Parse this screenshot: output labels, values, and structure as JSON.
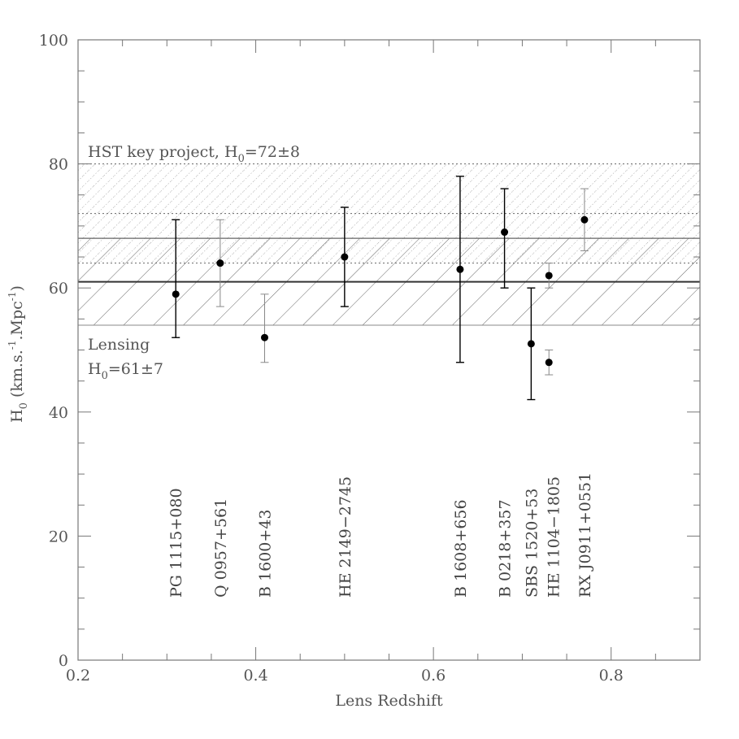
{
  "chart_data": {
    "type": "scatter",
    "xlabel": "Lens Redshift",
    "ylabel": {
      "base": "H",
      "sub": "0",
      "unit_open": " (km.s.",
      "unit_sup1": "-1",
      "unit_mid": ".Mpc",
      "unit_sup2": "-1",
      "unit_close": ")"
    },
    "xlim": [
      0.2,
      0.9
    ],
    "ylim": [
      0,
      100
    ],
    "x_ticks": [
      "0.2",
      "0.4",
      "0.6",
      "0.8"
    ],
    "y_ticks": [
      "0",
      "20",
      "40",
      "60",
      "80",
      "100"
    ],
    "grid": false,
    "series": [
      {
        "points": [
          {
            "name": "PG 1115+080",
            "x": 0.31,
            "y": 59,
            "y_low": 52,
            "y_high": 71,
            "label_x": 0.31
          },
          {
            "name": "Q 0957+561",
            "x": 0.36,
            "y": 64,
            "y_low": 57,
            "y_high": 71,
            "label_x": 0.36
          },
          {
            "name": "B 1600+43",
            "x": 0.41,
            "y": 52,
            "y_low": 48,
            "y_high": 59,
            "label_x": 0.41
          },
          {
            "name": "HE 2149−2745",
            "x": 0.5,
            "y": 65,
            "y_low": 57,
            "y_high": 73,
            "label_x": 0.5
          },
          {
            "name": "B 1608+656",
            "x": 0.63,
            "y": 63,
            "y_low": 48,
            "y_high": 78,
            "label_x": 0.63
          },
          {
            "name": "B 0218+357",
            "x": 0.68,
            "y": 69,
            "y_low": 60,
            "y_high": 76,
            "label_x": 0.68
          },
          {
            "name": "SBS 1520+53",
            "x": 0.71,
            "y": 51,
            "y_low": 42,
            "y_high": 60,
            "label_x": 0.71
          },
          {
            "name": "HE 1104−1805",
            "x": 0.73,
            "y": 48,
            "y_low": 46,
            "y_high": 50,
            "label_x": 0.735
          },
          {
            "name": "",
            "x": 0.73,
            "y": 62,
            "y_low": 60,
            "y_high": 64,
            "label_x": null
          },
          {
            "name": "RX J0911+0551",
            "x": 0.77,
            "y": 71,
            "y_low": 66,
            "y_high": 76,
            "label_x": 0.77
          }
        ]
      }
    ],
    "bands": [
      {
        "name": "HST key project",
        "center": 72,
        "low": 64,
        "high": 80,
        "style": "dotted-crosshatch",
        "color": "#555555",
        "label_base": "HST key project, H",
        "label_sub": "0",
        "label_value": "=72±8"
      },
      {
        "name": "Lensing",
        "center": 61,
        "low": 54,
        "high": 68,
        "style": "solid-hatch",
        "color": "#555555",
        "label_line1": "Lensing",
        "label_base": "H",
        "label_sub": "0",
        "label_value": "=61±7"
      }
    ],
    "marker_color": "#000000",
    "errorbar_colors": {
      "light": "#888888",
      "dark": "#000000"
    }
  }
}
